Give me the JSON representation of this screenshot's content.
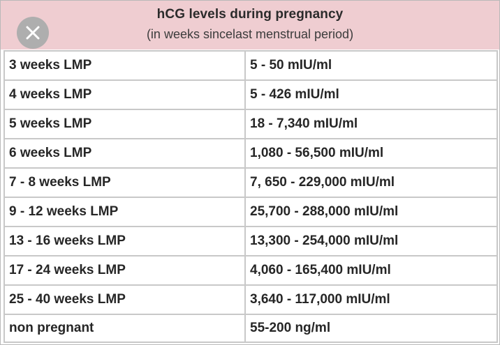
{
  "header": {
    "title": "hCG levels during pregnancy",
    "subtitle": "(in weeks sincelast menstrual period)"
  },
  "close_button": {
    "icon": "close-icon",
    "color": "#aeaeae"
  },
  "colors": {
    "header_background": "#efcdd1",
    "grid_lines": "#c8c8c8"
  },
  "table": {
    "rows": [
      {
        "weeks": "3 weeks LMP",
        "level": "5 - 50 mIU/ml"
      },
      {
        "weeks": "4 weeks LMP",
        "level": "5 - 426 mIU/ml"
      },
      {
        "weeks": "5 weeks LMP",
        "level": "18 - 7,340 mIU/ml"
      },
      {
        "weeks": "6 weeks LMP",
        "level": "1,080 - 56,500 mIU/ml"
      },
      {
        "weeks": "7 - 8 weeks LMP",
        "level": "7, 650 - 229,000 mIU/ml"
      },
      {
        "weeks": "9 - 12 weeks LMP",
        "level": "25,700 - 288,000 mIU/ml"
      },
      {
        "weeks": "13 - 16 weeks LMP",
        "level": "13,300 - 254,000 mIU/ml"
      },
      {
        "weeks": "17 - 24 weeks LMP",
        "level": "4,060 - 165,400 mIU/ml"
      },
      {
        "weeks": "25 - 40 weeks LMP",
        "level": "3,640 - 117,000 mIU/ml"
      },
      {
        "weeks": "non pregnant",
        "level": "55-200 ng/ml"
      }
    ]
  }
}
